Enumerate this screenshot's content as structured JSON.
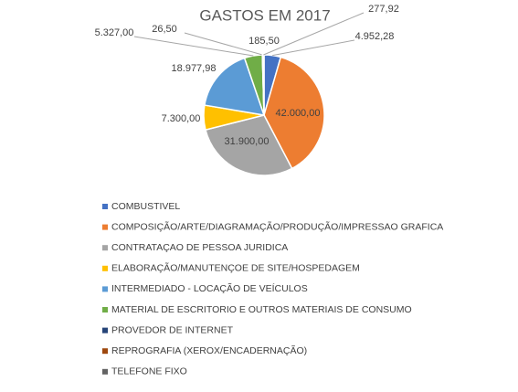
{
  "chart_data": {
    "type": "pie",
    "title": "GASTOS EM 2017",
    "categories": [
      "COMBUSTIVEL",
      "COMPOSIÇÃO/ARTE/DIAGRAMAÇÃO/PRODUÇÃO/IMPRESSAO GRAFICA",
      "CONTRATAÇAO DE PESSOA JURIDICA",
      "ELABORAÇÃO/MANUTENÇOE DE SITE/HOSPEDAGEM",
      "INTERMEDIADO - LOCAÇÃO DE VEÍCULOS",
      "MATERIAL DE ESCRITORIO E OUTROS MATERIAIS DE CONSUMO",
      "PROVEDOR DE INTERNET",
      "REPROGRAFIA (XEROX/ENCADERNAÇÃO)",
      "TELEFONE FIXO"
    ],
    "values": [
      4952.28,
      42000,
      31900,
      7300,
      18977.98,
      5327,
      26.5,
      185.5,
      277.92
    ],
    "value_labels": [
      "4.952,28",
      "42.000,00",
      "31.900,00",
      "7.300,00",
      "18.977,98",
      "5.327,00",
      "26,50",
      "185,50",
      "277,92"
    ],
    "colors": [
      "#4472c4",
      "#ed7d31",
      "#a5a5a5",
      "#ffc000",
      "#5b9bd5",
      "#70ad47",
      "#264478",
      "#9e480e",
      "#636363"
    ],
    "legend": "bottom"
  }
}
